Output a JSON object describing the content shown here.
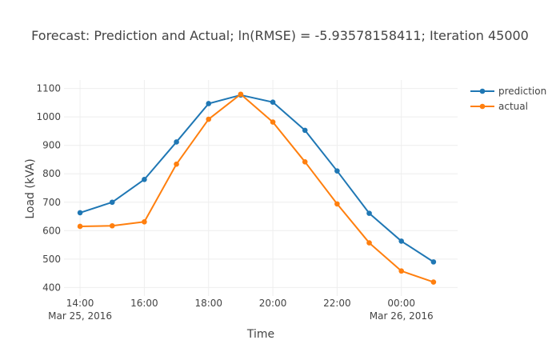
{
  "chart_data": {
    "type": "line",
    "title": "Forecast: Prediction and Actual; ln(RMSE) = -5.93578158411; Iteration 45000",
    "xlabel": "Time",
    "ylabel": "Load (kVA)",
    "x": [
      "2016-03-25 14:00",
      "2016-03-25 15:00",
      "2016-03-25 16:00",
      "2016-03-25 17:00",
      "2016-03-25 18:00",
      "2016-03-25 19:00",
      "2016-03-25 20:00",
      "2016-03-25 21:00",
      "2016-03-25 22:00",
      "2016-03-25 23:00",
      "2016-03-26 00:00",
      "2016-03-26 01:00"
    ],
    "xlim": [
      "2016-03-25 13:30",
      "2016-03-26 01:45"
    ],
    "ylim": [
      370,
      1130
    ],
    "xticks": [
      {
        "x": "2016-03-25 14:00",
        "label": "14:00",
        "sublabel": "Mar 25, 2016"
      },
      {
        "x": "2016-03-25 16:00",
        "label": "16:00",
        "sublabel": ""
      },
      {
        "x": "2016-03-25 18:00",
        "label": "18:00",
        "sublabel": ""
      },
      {
        "x": "2016-03-25 20:00",
        "label": "20:00",
        "sublabel": ""
      },
      {
        "x": "2016-03-25 22:00",
        "label": "22:00",
        "sublabel": ""
      },
      {
        "x": "2016-03-26 00:00",
        "label": "00:00",
        "sublabel": "Mar 26, 2016"
      }
    ],
    "yticks": [
      400,
      500,
      600,
      700,
      800,
      900,
      1000,
      1100
    ],
    "grid": true,
    "legend": "top-right",
    "series": [
      {
        "name": "prediction",
        "color": "#1f77b4",
        "values": [
          663,
          700,
          780,
          912,
          1047,
          1077,
          1052,
          953,
          810,
          661,
          563,
          490
        ]
      },
      {
        "name": "actual",
        "color": "#ff7f0e",
        "values": [
          615,
          617,
          631,
          834,
          992,
          1080,
          982,
          842,
          694,
          557,
          458,
          419
        ]
      }
    ]
  }
}
